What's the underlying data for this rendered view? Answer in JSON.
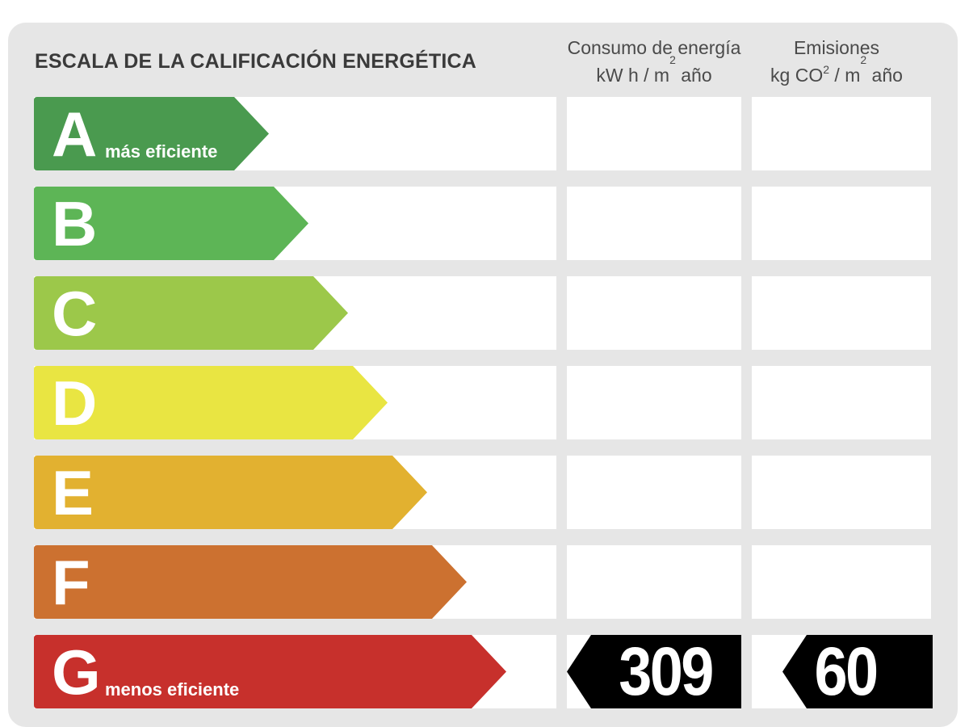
{
  "title": "ESCALA DE LA CALIFICACIÓN ENERGÉTICA",
  "columns": {
    "energy": {
      "line1": "Consumo de energía",
      "unit_a": "kW h  / m",
      "unit_sup": "2",
      "unit_b": " año"
    },
    "emissions": {
      "line1": "Emisiones",
      "unit_a": "kg CO",
      "unit_sub": "2",
      "unit_mid": "  / m",
      "unit_sup": "2",
      "unit_b": " año"
    }
  },
  "classes": [
    {
      "letter": "A",
      "label": "más eficiente",
      "color": "#4a9a4f"
    },
    {
      "letter": "B",
      "label": "",
      "color": "#5db556"
    },
    {
      "letter": "C",
      "label": "",
      "color": "#9cc84a"
    },
    {
      "letter": "D",
      "label": "",
      "color": "#e9e542"
    },
    {
      "letter": "E",
      "label": "",
      "color": "#e2b130"
    },
    {
      "letter": "F",
      "label": "",
      "color": "#cc7130"
    },
    {
      "letter": "G",
      "label": "menos eficiente",
      "color": "#c7302c"
    }
  ],
  "rating": {
    "class": "G",
    "energy_value": "309",
    "emissions_value": "60",
    "marker_color": "#000000"
  }
}
